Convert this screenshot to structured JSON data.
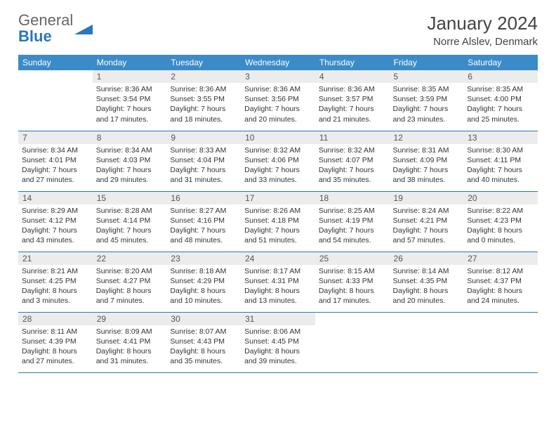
{
  "logo": {
    "text1": "General",
    "text2": "Blue"
  },
  "header": {
    "month": "January 2024",
    "location": "Norre Alslev, Denmark"
  },
  "colors": {
    "header_bg": "#3b8bc8",
    "header_text": "#ffffff",
    "daynum_bg": "#ececec",
    "row_border": "#2977bc",
    "logo_gray": "#666666",
    "logo_blue": "#2977bc"
  },
  "day_names": [
    "Sunday",
    "Monday",
    "Tuesday",
    "Wednesday",
    "Thursday",
    "Friday",
    "Saturday"
  ],
  "weeks": [
    [
      null,
      {
        "n": "1",
        "sr": "Sunrise: 8:36 AM",
        "ss": "Sunset: 3:54 PM",
        "d1": "Daylight: 7 hours",
        "d2": "and 17 minutes."
      },
      {
        "n": "2",
        "sr": "Sunrise: 8:36 AM",
        "ss": "Sunset: 3:55 PM",
        "d1": "Daylight: 7 hours",
        "d2": "and 18 minutes."
      },
      {
        "n": "3",
        "sr": "Sunrise: 8:36 AM",
        "ss": "Sunset: 3:56 PM",
        "d1": "Daylight: 7 hours",
        "d2": "and 20 minutes."
      },
      {
        "n": "4",
        "sr": "Sunrise: 8:36 AM",
        "ss": "Sunset: 3:57 PM",
        "d1": "Daylight: 7 hours",
        "d2": "and 21 minutes."
      },
      {
        "n": "5",
        "sr": "Sunrise: 8:35 AM",
        "ss": "Sunset: 3:59 PM",
        "d1": "Daylight: 7 hours",
        "d2": "and 23 minutes."
      },
      {
        "n": "6",
        "sr": "Sunrise: 8:35 AM",
        "ss": "Sunset: 4:00 PM",
        "d1": "Daylight: 7 hours",
        "d2": "and 25 minutes."
      }
    ],
    [
      {
        "n": "7",
        "sr": "Sunrise: 8:34 AM",
        "ss": "Sunset: 4:01 PM",
        "d1": "Daylight: 7 hours",
        "d2": "and 27 minutes."
      },
      {
        "n": "8",
        "sr": "Sunrise: 8:34 AM",
        "ss": "Sunset: 4:03 PM",
        "d1": "Daylight: 7 hours",
        "d2": "and 29 minutes."
      },
      {
        "n": "9",
        "sr": "Sunrise: 8:33 AM",
        "ss": "Sunset: 4:04 PM",
        "d1": "Daylight: 7 hours",
        "d2": "and 31 minutes."
      },
      {
        "n": "10",
        "sr": "Sunrise: 8:32 AM",
        "ss": "Sunset: 4:06 PM",
        "d1": "Daylight: 7 hours",
        "d2": "and 33 minutes."
      },
      {
        "n": "11",
        "sr": "Sunrise: 8:32 AM",
        "ss": "Sunset: 4:07 PM",
        "d1": "Daylight: 7 hours",
        "d2": "and 35 minutes."
      },
      {
        "n": "12",
        "sr": "Sunrise: 8:31 AM",
        "ss": "Sunset: 4:09 PM",
        "d1": "Daylight: 7 hours",
        "d2": "and 38 minutes."
      },
      {
        "n": "13",
        "sr": "Sunrise: 8:30 AM",
        "ss": "Sunset: 4:11 PM",
        "d1": "Daylight: 7 hours",
        "d2": "and 40 minutes."
      }
    ],
    [
      {
        "n": "14",
        "sr": "Sunrise: 8:29 AM",
        "ss": "Sunset: 4:12 PM",
        "d1": "Daylight: 7 hours",
        "d2": "and 43 minutes."
      },
      {
        "n": "15",
        "sr": "Sunrise: 8:28 AM",
        "ss": "Sunset: 4:14 PM",
        "d1": "Daylight: 7 hours",
        "d2": "and 45 minutes."
      },
      {
        "n": "16",
        "sr": "Sunrise: 8:27 AM",
        "ss": "Sunset: 4:16 PM",
        "d1": "Daylight: 7 hours",
        "d2": "and 48 minutes."
      },
      {
        "n": "17",
        "sr": "Sunrise: 8:26 AM",
        "ss": "Sunset: 4:18 PM",
        "d1": "Daylight: 7 hours",
        "d2": "and 51 minutes."
      },
      {
        "n": "18",
        "sr": "Sunrise: 8:25 AM",
        "ss": "Sunset: 4:19 PM",
        "d1": "Daylight: 7 hours",
        "d2": "and 54 minutes."
      },
      {
        "n": "19",
        "sr": "Sunrise: 8:24 AM",
        "ss": "Sunset: 4:21 PM",
        "d1": "Daylight: 7 hours",
        "d2": "and 57 minutes."
      },
      {
        "n": "20",
        "sr": "Sunrise: 8:22 AM",
        "ss": "Sunset: 4:23 PM",
        "d1": "Daylight: 8 hours",
        "d2": "and 0 minutes."
      }
    ],
    [
      {
        "n": "21",
        "sr": "Sunrise: 8:21 AM",
        "ss": "Sunset: 4:25 PM",
        "d1": "Daylight: 8 hours",
        "d2": "and 3 minutes."
      },
      {
        "n": "22",
        "sr": "Sunrise: 8:20 AM",
        "ss": "Sunset: 4:27 PM",
        "d1": "Daylight: 8 hours",
        "d2": "and 7 minutes."
      },
      {
        "n": "23",
        "sr": "Sunrise: 8:18 AM",
        "ss": "Sunset: 4:29 PM",
        "d1": "Daylight: 8 hours",
        "d2": "and 10 minutes."
      },
      {
        "n": "24",
        "sr": "Sunrise: 8:17 AM",
        "ss": "Sunset: 4:31 PM",
        "d1": "Daylight: 8 hours",
        "d2": "and 13 minutes."
      },
      {
        "n": "25",
        "sr": "Sunrise: 8:15 AM",
        "ss": "Sunset: 4:33 PM",
        "d1": "Daylight: 8 hours",
        "d2": "and 17 minutes."
      },
      {
        "n": "26",
        "sr": "Sunrise: 8:14 AM",
        "ss": "Sunset: 4:35 PM",
        "d1": "Daylight: 8 hours",
        "d2": "and 20 minutes."
      },
      {
        "n": "27",
        "sr": "Sunrise: 8:12 AM",
        "ss": "Sunset: 4:37 PM",
        "d1": "Daylight: 8 hours",
        "d2": "and 24 minutes."
      }
    ],
    [
      {
        "n": "28",
        "sr": "Sunrise: 8:11 AM",
        "ss": "Sunset: 4:39 PM",
        "d1": "Daylight: 8 hours",
        "d2": "and 27 minutes."
      },
      {
        "n": "29",
        "sr": "Sunrise: 8:09 AM",
        "ss": "Sunset: 4:41 PM",
        "d1": "Daylight: 8 hours",
        "d2": "and 31 minutes."
      },
      {
        "n": "30",
        "sr": "Sunrise: 8:07 AM",
        "ss": "Sunset: 4:43 PM",
        "d1": "Daylight: 8 hours",
        "d2": "and 35 minutes."
      },
      {
        "n": "31",
        "sr": "Sunrise: 8:06 AM",
        "ss": "Sunset: 4:45 PM",
        "d1": "Daylight: 8 hours",
        "d2": "and 39 minutes."
      },
      null,
      null,
      null
    ]
  ]
}
